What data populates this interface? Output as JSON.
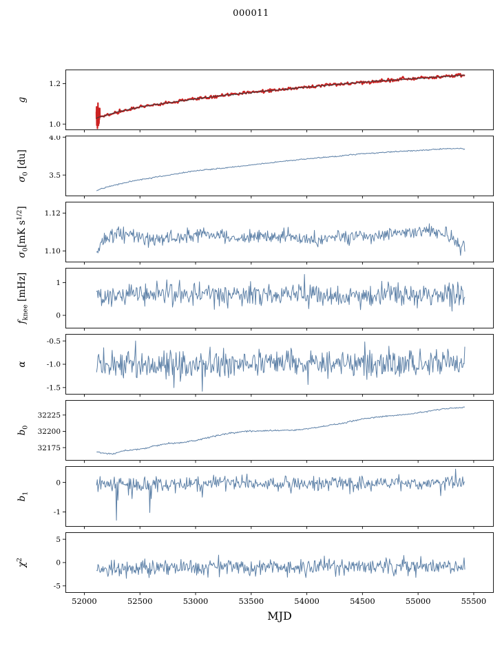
{
  "title": "000011",
  "xlabel": "MJD",
  "colors": {
    "line": "#5b7fa6",
    "red": "#cc2222",
    "dark": "#3b3b3b",
    "frame": "#000000"
  },
  "chart_data": {
    "type": "line",
    "title": "000011",
    "xlabel": "MJD",
    "xlim": [
      51830,
      55680
    ],
    "xticks": [
      52000,
      52500,
      53000,
      53500,
      54000,
      54500,
      55000,
      55500
    ],
    "xtick_labels": [
      "52000",
      "52500",
      "53000",
      "53500",
      "54000",
      "54500",
      "55000",
      "55500"
    ],
    "grid": false,
    "legend": "none",
    "subplots": [
      {
        "name": "g",
        "ylabel_parts": [
          {
            "t": "g",
            "italic": true
          }
        ],
        "ylim": [
          0.97,
          1.27
        ],
        "yticks": [
          1.0,
          1.2
        ],
        "ytick_labels": [
          "1.0",
          "1.2"
        ],
        "series": [
          {
            "color": "#cc2222",
            "width": 2.4,
            "seed": 12,
            "n": 400,
            "noise": 0.004,
            "x_range": [
              52110,
              55420
            ],
            "keypoints": [
              [
                52110,
                1.03
              ],
              [
                52300,
                1.06
              ],
              [
                52500,
                1.085
              ],
              [
                52750,
                1.105
              ],
              [
                53000,
                1.125
              ],
              [
                53300,
                1.145
              ],
              [
                53600,
                1.162
              ],
              [
                53900,
                1.178
              ],
              [
                54200,
                1.193
              ],
              [
                54500,
                1.207
              ],
              [
                54800,
                1.219
              ],
              [
                55100,
                1.23
              ],
              [
                55420,
                1.243
              ]
            ]
          },
          {
            "color": "#cc2222",
            "width": 2.2,
            "seed": 9,
            "n": 34,
            "noise": 0.026,
            "x_range": [
              52108,
              52140
            ],
            "keypoints": [
              [
                52108,
                1.035
              ],
              [
                52140,
                1.035
              ]
            ]
          },
          {
            "color": "#3b3b3b",
            "width": 1.0,
            "seed": 11,
            "n": 400,
            "noise": 0.0015,
            "x_range": [
              52110,
              55420
            ],
            "keypoints": [
              [
                52110,
                1.03
              ],
              [
                52300,
                1.06
              ],
              [
                52500,
                1.085
              ],
              [
                52750,
                1.105
              ],
              [
                53000,
                1.125
              ],
              [
                53300,
                1.145
              ],
              [
                53600,
                1.162
              ],
              [
                53900,
                1.178
              ],
              [
                54200,
                1.193
              ],
              [
                54500,
                1.207
              ],
              [
                54800,
                1.219
              ],
              [
                55100,
                1.23
              ],
              [
                55420,
                1.243
              ]
            ]
          }
        ]
      },
      {
        "name": "sigma0-du",
        "ylabel_parts": [
          {
            "t": "σ",
            "italic": true
          },
          {
            "t": "0",
            "sub": true
          },
          {
            "t": " [du]"
          }
        ],
        "ylim": [
          3.22,
          4.02
        ],
        "yticks": [
          3.5,
          4.0
        ],
        "ytick_labels": [
          "3.5",
          "4.0"
        ],
        "series": [
          {
            "color": "#5b7fa6",
            "width": 1.0,
            "seed": 2,
            "n": 450,
            "noise": 0.004,
            "x_range": [
              52110,
              55420
            ],
            "keypoints": [
              [
                52110,
                3.3
              ],
              [
                52250,
                3.36
              ],
              [
                52400,
                3.41
              ],
              [
                52600,
                3.46
              ],
              [
                52800,
                3.51
              ],
              [
                53000,
                3.555
              ],
              [
                53300,
                3.6
              ],
              [
                53600,
                3.65
              ],
              [
                53900,
                3.7
              ],
              [
                54200,
                3.74
              ],
              [
                54500,
                3.78
              ],
              [
                54800,
                3.81
              ],
              [
                55100,
                3.835
              ],
              [
                55300,
                3.85
              ],
              [
                55420,
                3.845
              ]
            ]
          }
        ]
      },
      {
        "name": "sigma0-mks",
        "ylabel_parts": [
          {
            "t": "σ",
            "italic": true
          },
          {
            "t": "0",
            "sub": true
          },
          {
            "t": "[mK s"
          },
          {
            "t": "1/2",
            "sup": true
          },
          {
            "t": "]"
          }
        ],
        "ylim": [
          1.094,
          1.126
        ],
        "yticks": [
          1.1,
          1.12
        ],
        "ytick_labels": [
          "1.10",
          "1.12"
        ],
        "series": [
          {
            "color": "#5b7fa6",
            "width": 1.0,
            "seed": 3,
            "n": 520,
            "noise": 0.0018,
            "x_range": [
              52110,
              55420
            ],
            "keypoints": [
              [
                52110,
                1.1
              ],
              [
                52180,
                1.106
              ],
              [
                52300,
                1.109
              ],
              [
                52600,
                1.106
              ],
              [
                52900,
                1.107
              ],
              [
                53100,
                1.109
              ],
              [
                53400,
                1.107
              ],
              [
                53800,
                1.108
              ],
              [
                54100,
                1.106
              ],
              [
                54500,
                1.108
              ],
              [
                54800,
                1.109
              ],
              [
                55100,
                1.111
              ],
              [
                55300,
                1.108
              ],
              [
                55380,
                1.101
              ],
              [
                55420,
                1.104
              ]
            ]
          }
        ]
      },
      {
        "name": "fknee",
        "ylabel_parts": [
          {
            "t": "f",
            "italic": true
          },
          {
            "t": "knee",
            "sub": true
          },
          {
            "t": " [mHz]"
          }
        ],
        "ylim": [
          -0.4,
          1.45
        ],
        "yticks": [
          0,
          1
        ],
        "ytick_labels": [
          "0",
          "1"
        ],
        "series": [
          {
            "color": "#5b7fa6",
            "width": 1.0,
            "seed": 4,
            "n": 520,
            "noise": 0.16,
            "x_range": [
              52110,
              55420
            ],
            "keypoints": [
              [
                52110,
                0.6
              ],
              [
                53000,
                0.63
              ],
              [
                54000,
                0.6
              ],
              [
                55420,
                0.62
              ]
            ],
            "spikes": [
              [
                53980,
                1.25
              ],
              [
                52650,
                1.05
              ],
              [
                54820,
                1.0
              ]
            ]
          }
        ]
      },
      {
        "name": "alpha",
        "ylabel_parts": [
          {
            "t": "α",
            "italic": true
          }
        ],
        "ylim": [
          -1.65,
          -0.35
        ],
        "yticks": [
          -1.5,
          -1.0,
          -0.5
        ],
        "ytick_labels": [
          "-1.5",
          "-1.0",
          "-0.5"
        ],
        "series": [
          {
            "color": "#5b7fa6",
            "width": 1.0,
            "seed": 5,
            "n": 520,
            "noise": 0.155,
            "x_range": [
              52110,
              55420
            ],
            "keypoints": [
              [
                52110,
                -1.02
              ],
              [
                53500,
                -1.0
              ],
              [
                55420,
                -0.98
              ]
            ],
            "spikes": [
              [
                52460,
                -0.5
              ],
              [
                53060,
                -1.58
              ],
              [
                54520,
                -0.52
              ]
            ]
          }
        ]
      },
      {
        "name": "b0",
        "ylabel_parts": [
          {
            "t": "b",
            "italic": true
          },
          {
            "t": "0",
            "sub": true
          }
        ],
        "ylim": [
          32155,
          32248
        ],
        "yticks": [
          32175,
          32200,
          32225
        ],
        "ytick_labels": [
          "32175",
          "32200",
          "32225"
        ],
        "series": [
          {
            "color": "#5b7fa6",
            "width": 1.0,
            "seed": 6,
            "n": 450,
            "noise": 0.55,
            "x_range": [
              52110,
              55420
            ],
            "keypoints": [
              [
                52110,
                32168
              ],
              [
                52250,
                32165
              ],
              [
                52350,
                32170
              ],
              [
                52450,
                32172
              ],
              [
                52550,
                32174
              ],
              [
                52650,
                32178
              ],
              [
                52750,
                32181
              ],
              [
                52900,
                32183
              ],
              [
                53000,
                32186
              ],
              [
                53150,
                32192
              ],
              [
                53300,
                32197
              ],
              [
                53450,
                32200
              ],
              [
                53700,
                32201
              ],
              [
                53900,
                32202
              ],
              [
                54100,
                32206
              ],
              [
                54300,
                32212
              ],
              [
                54500,
                32219
              ],
              [
                54700,
                32223
              ],
              [
                54900,
                32226
              ],
              [
                55100,
                32231
              ],
              [
                55250,
                32235
              ],
              [
                55420,
                32237
              ]
            ]
          }
        ]
      },
      {
        "name": "b1",
        "ylabel_parts": [
          {
            "t": "b",
            "italic": true
          },
          {
            "t": "1",
            "sub": true
          }
        ],
        "ylim": [
          -1.5,
          0.55
        ],
        "yticks": [
          -1,
          0
        ],
        "ytick_labels": [
          "-1",
          "0"
        ],
        "series": [
          {
            "color": "#5b7fa6",
            "width": 1.0,
            "seed": 7,
            "n": 520,
            "noise": 0.12,
            "x_range": [
              52110,
              55420
            ],
            "keypoints": [
              [
                52110,
                -0.05
              ],
              [
                52400,
                -0.1
              ],
              [
                53000,
                -0.02
              ],
              [
                54000,
                -0.05
              ],
              [
                55420,
                0.0
              ]
            ],
            "spikes": [
              [
                52290,
                -1.28
              ],
              [
                52300,
                -0.6
              ],
              [
                52590,
                -1.02
              ],
              [
                52600,
                -0.55
              ],
              [
                52430,
                -0.55
              ],
              [
                53060,
                -0.5
              ],
              [
                55200,
                -0.45
              ],
              [
                55340,
                0.45
              ]
            ]
          }
        ]
      },
      {
        "name": "chi2",
        "ylabel_parts": [
          {
            "t": "χ",
            "italic": true
          },
          {
            "t": "2",
            "sup": true
          }
        ],
        "ylim": [
          -6.5,
          6.5
        ],
        "yticks": [
          -5,
          0,
          5
        ],
        "ytick_labels": [
          "-5",
          "0",
          "5"
        ],
        "series": [
          {
            "color": "#5b7fa6",
            "width": 1.0,
            "seed": 8,
            "n": 520,
            "noise": 0.85,
            "x_range": [
              52110,
              55420
            ],
            "keypoints": [
              [
                52110,
                -1.3
              ],
              [
                53000,
                -1.1
              ],
              [
                54000,
                -1.0
              ],
              [
                55420,
                -0.9
              ]
            ],
            "spikes": [
              [
                52380,
                -3.4
              ],
              [
                53210,
                1.6
              ],
              [
                54160,
                1.4
              ],
              [
                54980,
                -3.2
              ]
            ]
          }
        ]
      }
    ]
  }
}
